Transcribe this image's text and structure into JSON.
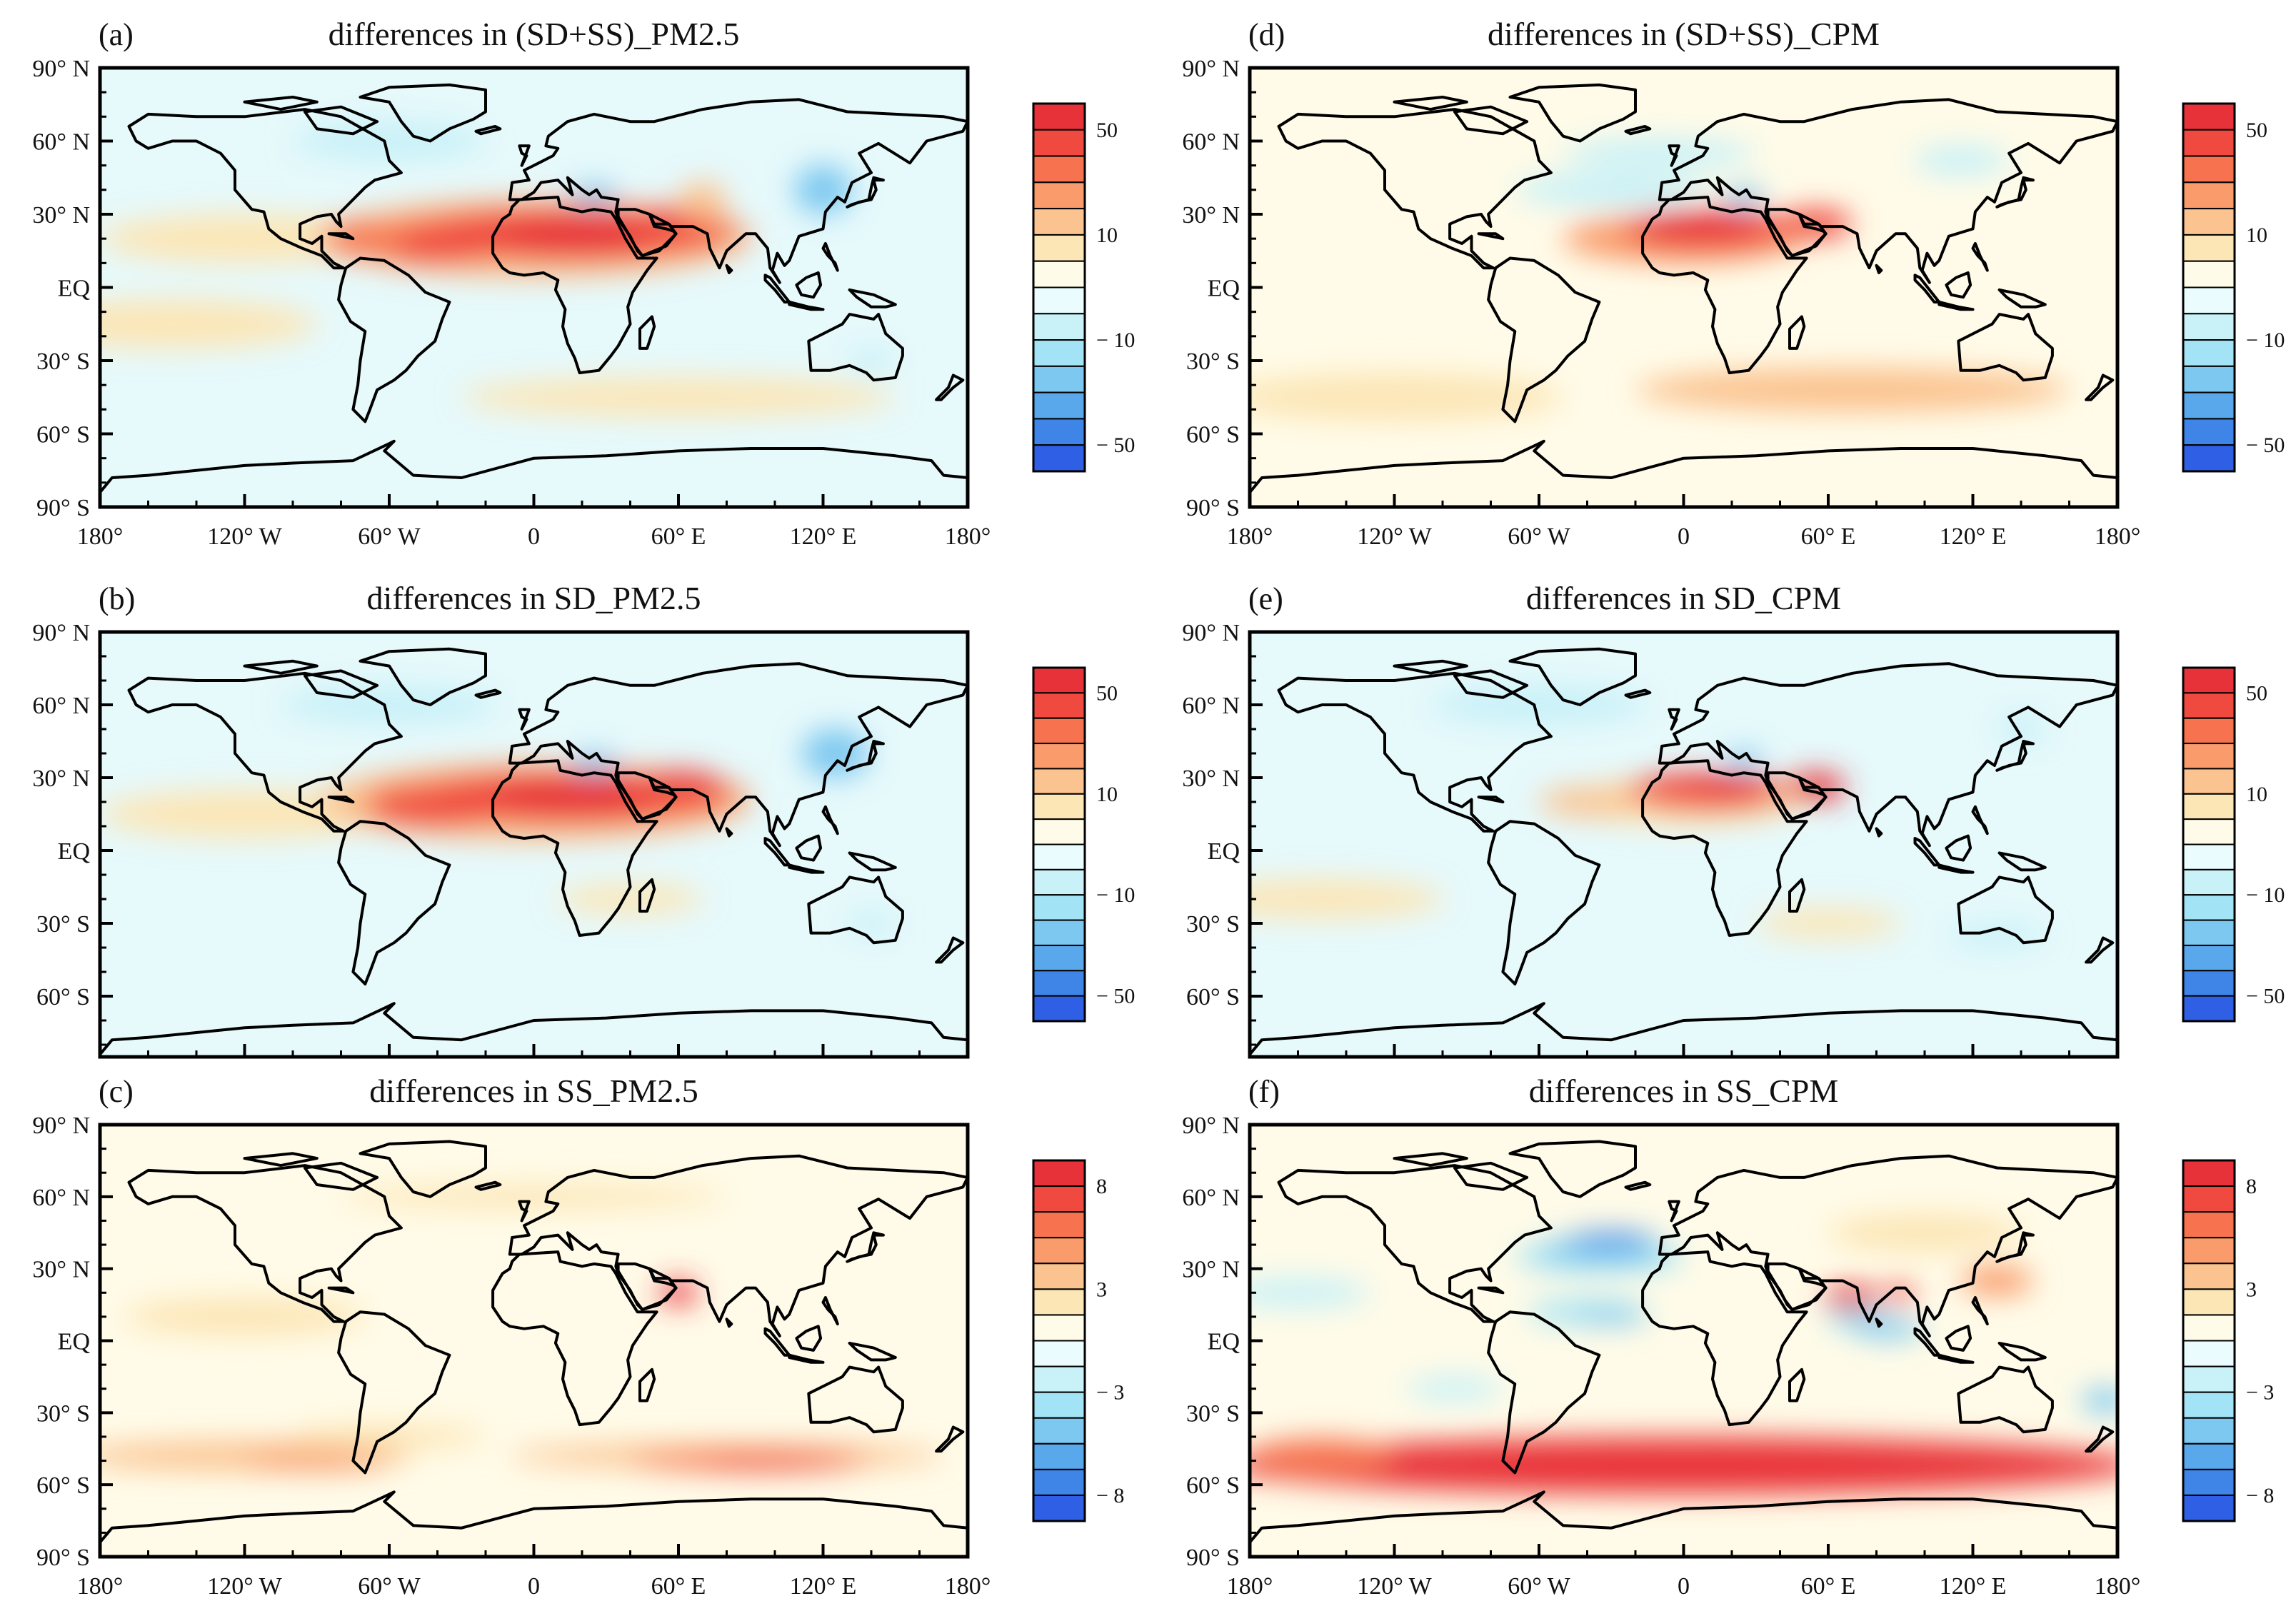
{
  "figure": {
    "panels": [
      {
        "id": "a",
        "label": "(a)",
        "title": "differences in (SD+SS)_PM2.5",
        "variable": "(SD+SS)_PM2.5",
        "lat_labels": [
          "90° N",
          "60° N",
          "30° N",
          "EQ",
          "30° S",
          "60° S",
          "90° S"
        ],
        "lon_axis": true,
        "colorbar": {
          "ticks": [
            "50",
            "10",
            "− 10",
            "− 50"
          ]
        }
      },
      {
        "id": "d",
        "label": "(d)",
        "title": "differences in (SD+SS)_CPM",
        "variable": "(SD+SS)_CPM",
        "lat_labels": [
          "90° N",
          "60° N",
          "30° N",
          "EQ",
          "30° S",
          "60° S",
          "90° S"
        ],
        "lon_axis": true,
        "colorbar": {
          "ticks": [
            "50",
            "10",
            "− 10",
            "− 50"
          ]
        }
      },
      {
        "id": "b",
        "label": "(b)",
        "title": "differences in SD_PM2.5",
        "variable": "SD_PM2.5",
        "lat_labels": [
          "90° N",
          "60° N",
          "30° N",
          "EQ",
          "30° S",
          "60° S"
        ],
        "lon_axis": false,
        "colorbar": {
          "ticks": [
            "50",
            "10",
            "− 10",
            "− 50"
          ]
        }
      },
      {
        "id": "e",
        "label": "(e)",
        "title": "differences in SD_CPM",
        "variable": "SD_CPM",
        "lat_labels": [
          "90° N",
          "60° N",
          "30° N",
          "EQ",
          "30° S",
          "60° S"
        ],
        "lon_axis": false,
        "colorbar": {
          "ticks": [
            "50",
            "10",
            "− 10",
            "− 50"
          ]
        }
      },
      {
        "id": "c",
        "label": "(c)",
        "title": "differences in SS_PM2.5",
        "variable": "SS_PM2.5",
        "lat_labels": [
          "90° N",
          "60° N",
          "30° N",
          "EQ",
          "30° S",
          "60° S",
          "90° S"
        ],
        "lon_axis": true,
        "colorbar": {
          "ticks": [
            "8",
            "3",
            "− 3",
            "− 8"
          ]
        }
      },
      {
        "id": "f",
        "label": "(f)",
        "title": "differences in SS_CPM",
        "variable": "SS_CPM",
        "lat_labels": [
          "90° N",
          "60° N",
          "30° N",
          "EQ",
          "30° S",
          "60° S",
          "90° S"
        ],
        "lon_axis": true,
        "colorbar": {
          "ticks": [
            "8",
            "3",
            "− 3",
            "− 8"
          ]
        }
      }
    ],
    "lon_labels": [
      "180°",
      "120° W",
      "60° W",
      "0",
      "60° E",
      "120° E",
      "180°"
    ],
    "colorbar_colors": [
      "#e8323a",
      "#f04a40",
      "#f7734f",
      "#f99b6b",
      "#fbc38f",
      "#fce6b6",
      "#fefbe8",
      "#eafcfd",
      "#c8f1f8",
      "#a2e3f5",
      "#7cc8f0",
      "#5aa8ec",
      "#3f85e8",
      "#2e5fe4"
    ],
    "colors": {
      "ocean_base": "#e6f9fb",
      "land_base": "#fffbe8",
      "frame": "#000000"
    }
  }
}
